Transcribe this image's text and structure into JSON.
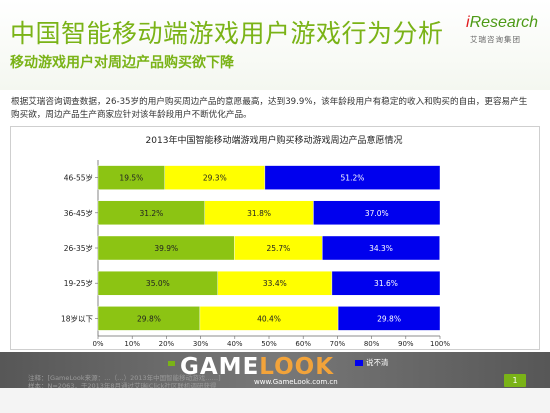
{
  "header": {
    "title": "中国智能移动端游戏用户游戏行为分析",
    "subtitle": "移动游戏用户对周边产品购买欲下降",
    "logo_main": "Research",
    "logo_i": "i",
    "logo_sub": "艾瑞咨询集团"
  },
  "paragraph": "根据艾瑞咨询调查数据，26-35岁的用户购买周边产品的意愿最高，达到39.9%，该年龄段用户有稳定的收入和购买的自由，更容易产生购买欲，周边产品生产商家应针对该年龄段用户不断优化产品。",
  "chart_data": {
    "type": "bar",
    "orientation": "horizontal",
    "stacked": true,
    "title": "2013年中国智能移动端游戏用户购买移动游戏周边产品意愿情况",
    "categories": [
      "46-55岁",
      "36-45岁",
      "26-35岁",
      "19-25岁",
      "18岁以下"
    ],
    "series": [
      {
        "values": [
          19.5,
          31.2,
          39.9,
          35.0,
          29.8
        ],
        "color": "#8cc413"
      },
      {
        "values": [
          29.3,
          31.8,
          25.7,
          33.4,
          40.4
        ],
        "color": "#ffff00"
      },
      {
        "name": "说不清",
        "values": [
          51.2,
          37.0,
          34.3,
          31.6,
          29.8
        ],
        "color": "#0000ee"
      }
    ],
    "value_labels": [
      [
        "19.5%",
        "29.3%",
        "51.2%"
      ],
      [
        "31.2%",
        "31.8%",
        "37.0%"
      ],
      [
        "39.9%",
        "25.7%",
        "34.3%"
      ],
      [
        "35.0%",
        "33.4%",
        "31.6%"
      ],
      [
        "29.8%",
        "40.4%",
        "29.8%"
      ]
    ],
    "xlim": [
      0,
      100
    ],
    "x_ticks": [
      "0%",
      "10%",
      "20%",
      "30%",
      "40%",
      "50%",
      "60%",
      "70%",
      "80%",
      "90%",
      "100%"
    ],
    "grid": false,
    "legend_position": "bottom"
  },
  "footer": {
    "note1": "注释：[GameLook来源：…（…）2013年中国智能移动游戏……]",
    "note2": "样本：N=2063，于2013年8月通过艾瑞iClick社区联机调研获得",
    "watermark_game": "GAME",
    "watermark_look": "LOOK",
    "watermark_url": "www.GameLook.com.cn",
    "page_number": "1"
  }
}
